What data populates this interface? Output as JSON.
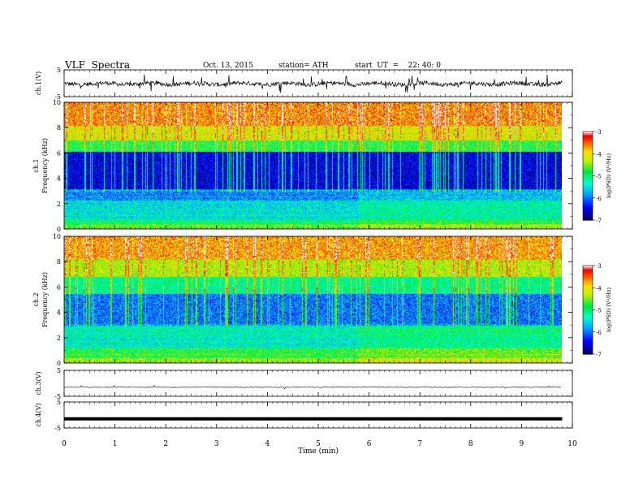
{
  "header": {
    "title": "VLF  Spectra",
    "date": "Oct. 13, 2015",
    "station": "station= ATH",
    "start": "start  UT  =    22: 40: 0"
  },
  "colors": {
    "low": "#000080",
    "mid_low": "#0000ff",
    "mid": "#00ff40",
    "mid_high": "#ffff00",
    "high": "#ff0000",
    "top": "#ffffff"
  },
  "chart_data": [
    {
      "type": "line",
      "panel": "ch1-waveform",
      "ylabel": "ch.1(V)",
      "ylim": [
        -5,
        5
      ],
      "yticks": [
        "5",
        "-5"
      ],
      "xlim": [
        0,
        10
      ],
      "x_extent": 9.8,
      "series": [
        {
          "values_note_approx_baseline": -0.2
        }
      ]
    },
    {
      "type": "heatmap",
      "panel": "ch1-spectrogram",
      "ylabel": [
        "ch.1",
        "Frequency  (kHz)"
      ],
      "yticks": [
        "0",
        "2",
        "4",
        "6",
        "8",
        "10"
      ],
      "ylim": [
        0,
        10
      ],
      "xlim": [
        0,
        10
      ],
      "x_extent": 9.8,
      "colorbar": {
        "label": "log(PSD) (V²/Hz)",
        "ticks": [
          "-3",
          "-4",
          "-5",
          "-6",
          "-7"
        ],
        "range": [
          -7,
          -3
        ]
      }
    },
    {
      "type": "heatmap",
      "panel": "ch2-spectrogram",
      "ylabel": [
        "ch.2",
        "Frequency  (kHz)"
      ],
      "yticks": [
        "0",
        "2",
        "4",
        "6",
        "8",
        "10"
      ],
      "ylim": [
        0,
        10
      ],
      "xlim": [
        0,
        10
      ],
      "x_extent": 9.8,
      "colorbar": {
        "label": "log(PSD) (V²/Hz)",
        "ticks": [
          "-3",
          "-4",
          "-5",
          "-6",
          "-7"
        ],
        "range": [
          -7,
          -3
        ]
      }
    },
    {
      "type": "line",
      "panel": "ch3-waveform",
      "ylabel": "ch.3(V)",
      "ylim": [
        -5,
        5
      ],
      "yticks": [
        "5",
        "-5"
      ],
      "xlim": [
        0,
        10
      ],
      "x_extent": 9.8,
      "series": [
        {
          "values_note_approx_baseline": -1.5
        }
      ]
    },
    {
      "type": "line",
      "panel": "ch4-waveform",
      "ylabel": "ch.4(V)",
      "ylim": [
        -5,
        5
      ],
      "yticks": [
        "5",
        "-5"
      ],
      "xlim": [
        0,
        10
      ],
      "x_extent": 9.8,
      "series": [
        {
          "values_note_approx_baseline": -1.5
        }
      ]
    }
  ],
  "xaxis": {
    "label": "Time  (min)",
    "ticks": [
      "0",
      "1",
      "2",
      "3",
      "4",
      "5",
      "6",
      "7",
      "8",
      "9",
      "10"
    ]
  }
}
